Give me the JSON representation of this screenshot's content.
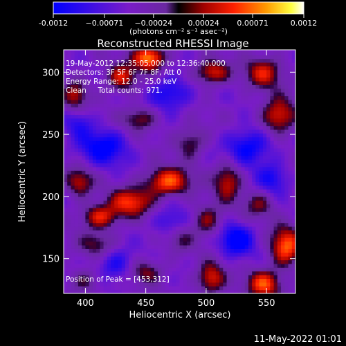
{
  "chart_data": {
    "type": "heatmap",
    "title": "Reconstructed RHESSI Image",
    "xlabel": "Heliocentric X (arcsec)",
    "ylabel": "Heliocentric Y (arcsec)",
    "xlim": [
      382,
      574
    ],
    "ylim": [
      122,
      318
    ],
    "x_ticks": [
      400,
      450,
      500,
      550
    ],
    "y_ticks": [
      150,
      200,
      250,
      300
    ],
    "colorbar": {
      "min": -0.0012,
      "max": 0.0012,
      "tick_values": [
        -0.0012,
        -0.00071,
        -0.00024,
        0.00024,
        0.00071,
        0.0012
      ],
      "tick_labels": [
        "-0.0012",
        "−0.00071",
        "−0.00024",
        "0.00024",
        "0.00071",
        "0.0012"
      ],
      "unit_label": "(photons cm⁻² s⁻¹ asec⁻²)"
    },
    "annotations": {
      "time": "19-May-2012 12:35:05.000 to 12:36:40.000",
      "detectors": "Detectors: 3F 5F 6F 7F 8F, Att 0",
      "energy": "Energy Range: 12.0 - 25.0 keV",
      "clean": "Clean     Total counts: 971.",
      "peak": "Position of Peak = [453,312]"
    },
    "blobs": [
      {
        "x": 453,
        "y": 312,
        "amp": 0.00125,
        "sx": 9,
        "sy": 7
      },
      {
        "x": 430,
        "y": 296,
        "amp": 0.00085,
        "sx": 9,
        "sy": 8
      },
      {
        "x": 505,
        "y": 300,
        "amp": 0.0009,
        "sx": 10,
        "sy": 7
      },
      {
        "x": 548,
        "y": 300,
        "amp": 0.0008,
        "sx": 11,
        "sy": 9
      },
      {
        "x": 560,
        "y": 265,
        "amp": 0.00095,
        "sx": 10,
        "sy": 10
      },
      {
        "x": 392,
        "y": 282,
        "amp": 0.0007,
        "sx": 7,
        "sy": 9
      },
      {
        "x": 445,
        "y": 263,
        "amp": 0.00065,
        "sx": 10,
        "sy": 7
      },
      {
        "x": 468,
        "y": 212,
        "amp": 0.0011,
        "sx": 13,
        "sy": 8
      },
      {
        "x": 438,
        "y": 196,
        "amp": 0.00095,
        "sx": 12,
        "sy": 8
      },
      {
        "x": 412,
        "y": 184,
        "amp": 0.0009,
        "sx": 11,
        "sy": 7
      },
      {
        "x": 395,
        "y": 212,
        "amp": 0.00075,
        "sx": 8,
        "sy": 8
      },
      {
        "x": 487,
        "y": 244,
        "amp": 0.0006,
        "sx": 9,
        "sy": 9
      },
      {
        "x": 518,
        "y": 213,
        "amp": 0.0008,
        "sx": 8,
        "sy": 11
      },
      {
        "x": 544,
        "y": 194,
        "amp": 0.00055,
        "sx": 9,
        "sy": 8
      },
      {
        "x": 501,
        "y": 181,
        "amp": 0.00065,
        "sx": 9,
        "sy": 9
      },
      {
        "x": 410,
        "y": 162,
        "amp": 0.00055,
        "sx": 10,
        "sy": 7
      },
      {
        "x": 566,
        "y": 160,
        "amp": 0.0011,
        "sx": 9,
        "sy": 11
      },
      {
        "x": 548,
        "y": 130,
        "amp": 0.001,
        "sx": 10,
        "sy": 8
      },
      {
        "x": 504,
        "y": 134,
        "amp": 0.0009,
        "sx": 8,
        "sy": 9
      },
      {
        "x": 450,
        "y": 140,
        "amp": 0.0006,
        "sx": 10,
        "sy": 7
      },
      {
        "x": 400,
        "y": 132,
        "amp": 0.0005,
        "sx": 9,
        "sy": 7
      },
      {
        "x": 478,
        "y": 166,
        "amp": 0.0004,
        "sx": 8,
        "sy": 8
      },
      {
        "x": 415,
        "y": 240,
        "amp": -0.0008,
        "sx": 14,
        "sy": 10
      },
      {
        "x": 470,
        "y": 283,
        "amp": -0.0007,
        "sx": 12,
        "sy": 9
      },
      {
        "x": 535,
        "y": 240,
        "amp": -0.0008,
        "sx": 13,
        "sy": 10
      },
      {
        "x": 470,
        "y": 180,
        "amp": -0.0005,
        "sx": 10,
        "sy": 8
      },
      {
        "x": 525,
        "y": 165,
        "amp": -0.0009,
        "sx": 10,
        "sy": 9
      },
      {
        "x": 425,
        "y": 145,
        "amp": -0.0006,
        "sx": 11,
        "sy": 9
      },
      {
        "x": 555,
        "y": 215,
        "amp": -0.0006,
        "sx": 9,
        "sy": 9
      },
      {
        "x": 395,
        "y": 260,
        "amp": -0.0005,
        "sx": 8,
        "sy": 8
      }
    ]
  },
  "footer": {
    "timestamp": "11-May-2022 01:01"
  }
}
